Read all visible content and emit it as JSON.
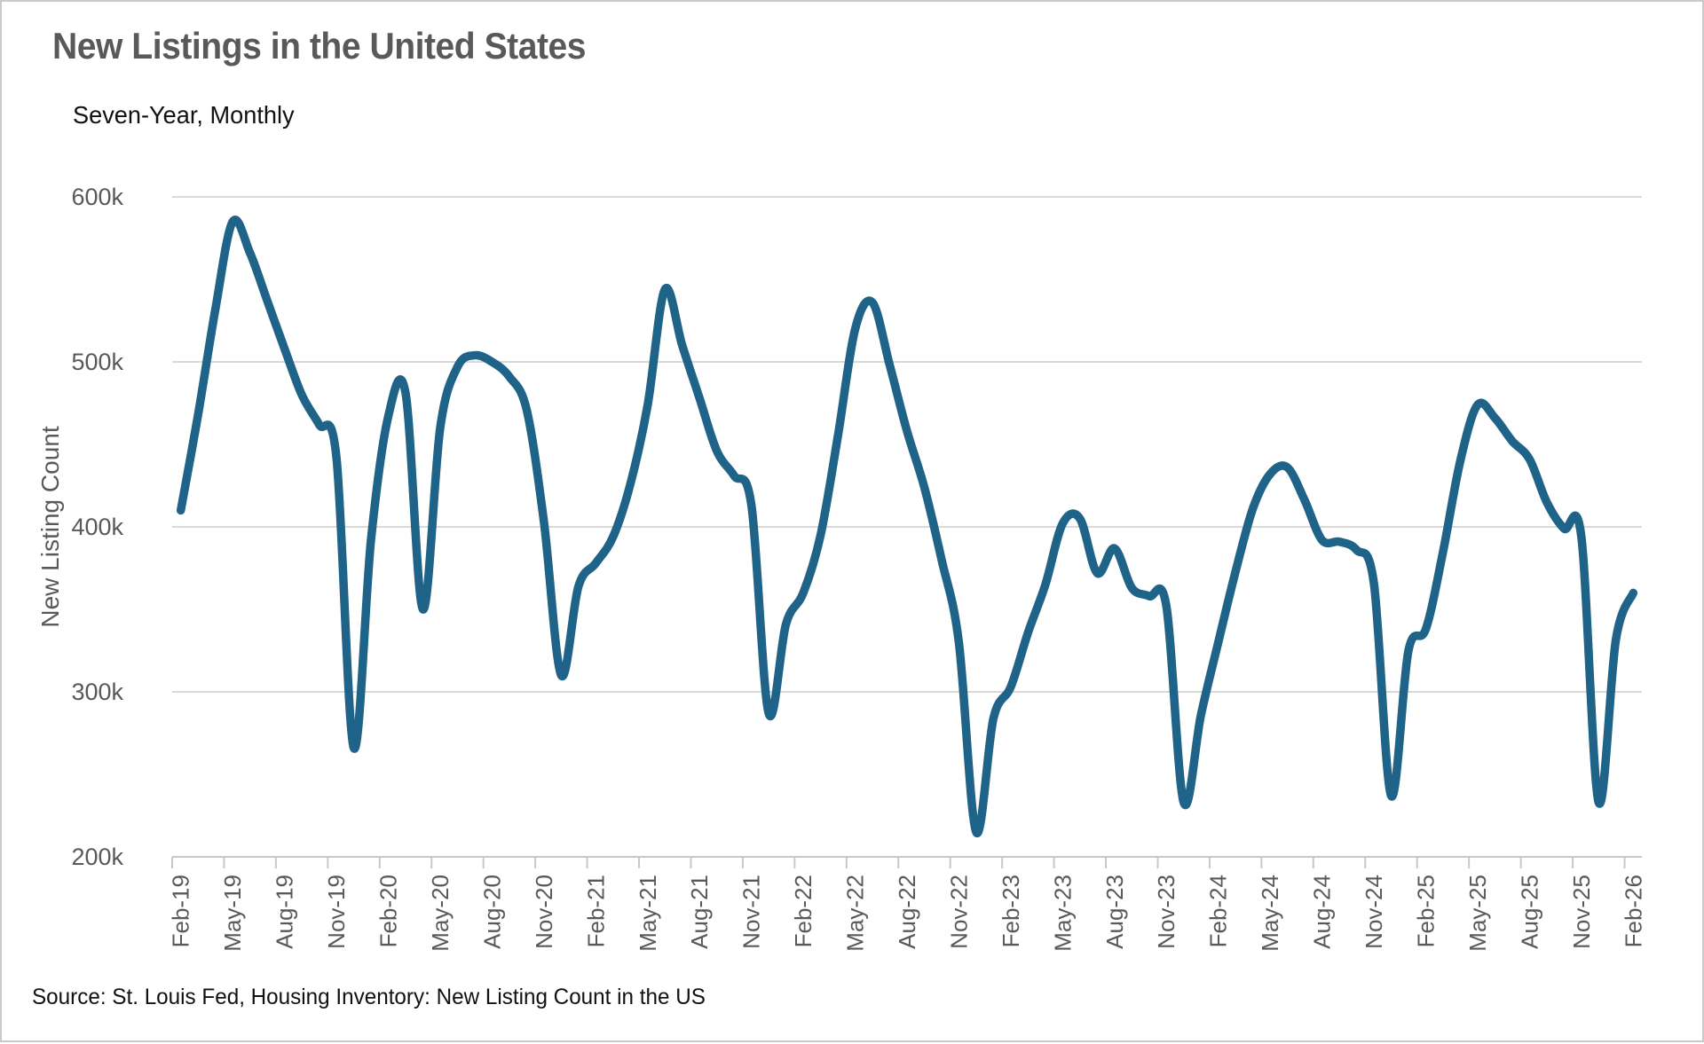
{
  "chart_data": {
    "type": "line",
    "title": "New Listings in the United States",
    "subtitle": "Seven-Year, Monthly",
    "ylabel": "New Listing Count",
    "source": "Source: St. Louis Fed, Housing Inventory: New Listing Count in the US",
    "units": "thousands of listings",
    "ylim_thousands": [
      200,
      600
    ],
    "ytick_labels": [
      "200k",
      "300k",
      "400k",
      "500k",
      "600k"
    ],
    "ytick_values_thousands": [
      200,
      300,
      400,
      500,
      600
    ],
    "xtick_labels_shown_every_3_months": [
      "Feb-19",
      "May-19",
      "Aug-19",
      "Nov-19",
      "Feb-20",
      "May-20",
      "Aug-20",
      "Nov-20",
      "Feb-21",
      "May-21",
      "Aug-21",
      "Nov-21",
      "Feb-22",
      "May-22",
      "Aug-22",
      "Nov-22",
      "Feb-23",
      "May-23",
      "Aug-23",
      "Nov-23",
      "Feb-24",
      "May-24",
      "Aug-24",
      "Nov-24",
      "Feb-25",
      "May-25",
      "Aug-25",
      "Nov-25",
      "Feb-26"
    ],
    "x": [
      "Feb-19",
      "Mar-19",
      "Apr-19",
      "May-19",
      "Jun-19",
      "Jul-19",
      "Aug-19",
      "Sep-19",
      "Oct-19",
      "Nov-19",
      "Dec-19",
      "Jan-20",
      "Feb-20",
      "Mar-20",
      "Apr-20",
      "May-20",
      "Jun-20",
      "Jul-20",
      "Aug-20",
      "Sep-20",
      "Oct-20",
      "Nov-20",
      "Dec-20",
      "Jan-21",
      "Feb-21",
      "Mar-21",
      "Apr-21",
      "May-21",
      "Jun-21",
      "Jul-21",
      "Aug-21",
      "Sep-21",
      "Oct-21",
      "Nov-21",
      "Dec-21",
      "Jan-22",
      "Feb-22",
      "Mar-22",
      "Apr-22",
      "May-22",
      "Jun-22",
      "Jul-22",
      "Aug-22",
      "Sep-22",
      "Oct-22",
      "Nov-22",
      "Dec-22",
      "Jan-23",
      "Feb-23",
      "Mar-23",
      "Apr-23",
      "May-23",
      "Jun-23",
      "Jul-23",
      "Aug-23",
      "Sep-23",
      "Oct-23",
      "Nov-23",
      "Dec-23",
      "Jan-24",
      "Feb-24",
      "Mar-24",
      "Apr-24",
      "May-24",
      "Jun-24",
      "Jul-24",
      "Aug-24",
      "Sep-24",
      "Oct-24",
      "Nov-24",
      "Dec-24",
      "Jan-25",
      "Feb-25",
      "Mar-25",
      "Apr-25",
      "May-25",
      "Jun-25",
      "Jul-25",
      "Aug-25",
      "Sep-25",
      "Oct-25",
      "Nov-25",
      "Dec-25",
      "Jan-26",
      "Feb-26"
    ],
    "values_thousands": [
      410,
      468,
      532,
      585,
      566,
      537,
      508,
      480,
      462,
      442,
      266,
      392,
      467,
      481,
      350,
      460,
      497,
      504,
      500,
      491,
      471,
      403,
      310,
      364,
      378,
      394,
      426,
      474,
      544,
      510,
      478,
      446,
      431,
      413,
      287,
      341,
      360,
      395,
      455,
      520,
      536,
      498,
      458,
      424,
      380,
      330,
      215,
      284,
      303,
      336,
      365,
      402,
      405,
      372,
      387,
      363,
      358,
      352,
      233,
      286,
      330,
      373,
      411,
      432,
      436,
      416,
      392,
      391,
      386,
      366,
      237,
      325,
      338,
      385,
      440,
      474,
      466,
      452,
      441,
      415,
      399,
      394,
      233,
      332,
      360
    ],
    "legend": "none",
    "grid": "horizontal-only",
    "colors": {
      "line": "#1F6388",
      "gridline": "#D9D9D9",
      "axis_line": "#C8C8C8",
      "title_text": "#595959",
      "tick_text": "#595959",
      "subtitle_text": "#111111",
      "source_text": "#111111",
      "background": "#FFFFFF",
      "card_border": "#C9C9C9"
    }
  }
}
